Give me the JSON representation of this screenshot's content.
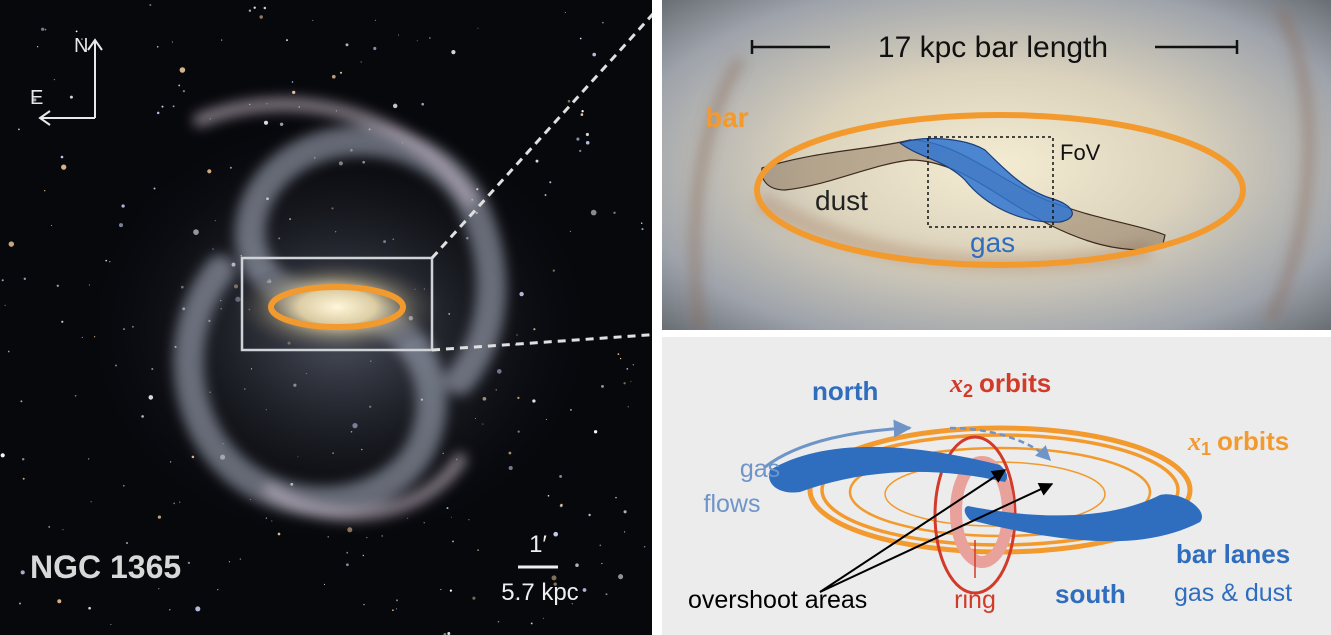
{
  "left_panel": {
    "compass": {
      "north": "N",
      "east": "E"
    },
    "object_name": "NGC 1365",
    "scale_bar": {
      "angle": "1′",
      "distance": "5.7 kpc"
    }
  },
  "top_right_panel": {
    "scale": "17 kpc bar length",
    "labels": {
      "bar": "bar",
      "dust": "dust",
      "gas": "gas",
      "fov": "FoV"
    }
  },
  "bottom_right_panel": {
    "north": "north",
    "x2_orbits": {
      "symbol": "x",
      "subscript": "2",
      "label": "orbits"
    },
    "x1_orbits": {
      "symbol": "x",
      "subscript": "1",
      "label": "orbits"
    },
    "gas_flows": [
      "gas",
      "flows"
    ],
    "overshoot_areas": "overshoot areas",
    "ring": "ring",
    "south": "south",
    "bar_lanes": "bar lanes",
    "gas_dust": "gas & dust"
  }
}
